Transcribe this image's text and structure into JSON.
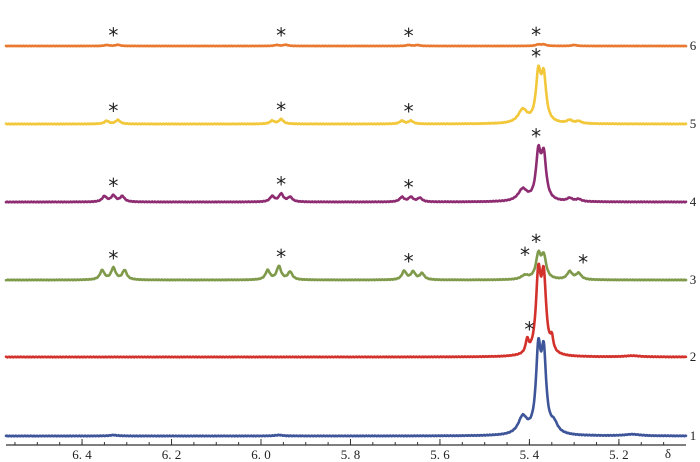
{
  "chart_data": {
    "type": "line",
    "title": "",
    "xlabel": "δ",
    "ylabel": "",
    "xlim": [
      6.57,
      5.05
    ],
    "x_reversed": true,
    "x_ticks": [
      "6.4",
      "6.2",
      "6.0",
      "5.8",
      "5.6",
      "5.4",
      "5.2"
    ],
    "grid": false,
    "legend": "none",
    "peak_marker": "*",
    "series": [
      {
        "name": "1",
        "color": "#3E5699",
        "peaks": [
          {
            "x": 5.415,
            "h": 0.22,
            "w": 0.012
          },
          {
            "x": 5.38,
            "h": 1.0,
            "w": 0.0065
          },
          {
            "x": 5.368,
            "h": 0.95,
            "w": 0.0065
          },
          {
            "x": 5.345,
            "h": 0.12,
            "w": 0.01
          },
          {
            "x": 6.33,
            "h": 0.012,
            "w": 0.01
          },
          {
            "x": 5.96,
            "h": 0.012,
            "w": 0.01
          },
          {
            "x": 5.17,
            "h": 0.02,
            "w": 0.02
          }
        ],
        "markers": [
          5.4
        ]
      },
      {
        "name": "2",
        "color": "#D3312B",
        "peaks": [
          {
            "x": 5.405,
            "h": 0.17,
            "w": 0.004
          },
          {
            "x": 5.38,
            "h": 1.0,
            "w": 0.0065
          },
          {
            "x": 5.368,
            "h": 0.95,
            "w": 0.0065
          },
          {
            "x": 5.35,
            "h": 0.17,
            "w": 0.004
          },
          {
            "x": 5.17,
            "h": 0.015,
            "w": 0.02
          }
        ],
        "markers": [
          5.41
        ]
      },
      {
        "name": "3",
        "color": "#7E9A4A",
        "peaks": [
          {
            "x": 6.355,
            "h": 0.12,
            "w": 0.006
          },
          {
            "x": 6.33,
            "h": 0.15,
            "w": 0.006
          },
          {
            "x": 6.305,
            "h": 0.12,
            "w": 0.006
          },
          {
            "x": 5.985,
            "h": 0.12,
            "w": 0.006
          },
          {
            "x": 5.96,
            "h": 0.17,
            "w": 0.006
          },
          {
            "x": 5.935,
            "h": 0.1,
            "w": 0.006
          },
          {
            "x": 5.68,
            "h": 0.11,
            "w": 0.006
          },
          {
            "x": 5.66,
            "h": 0.1,
            "w": 0.006
          },
          {
            "x": 5.64,
            "h": 0.08,
            "w": 0.006
          },
          {
            "x": 5.41,
            "h": 0.05,
            "w": 0.01
          },
          {
            "x": 5.38,
            "h": 0.3,
            "w": 0.0065
          },
          {
            "x": 5.368,
            "h": 0.28,
            "w": 0.0065
          },
          {
            "x": 5.31,
            "h": 0.1,
            "w": 0.007
          },
          {
            "x": 5.29,
            "h": 0.08,
            "w": 0.007
          }
        ],
        "markers": [
          6.33,
          5.955,
          5.67,
          5.385,
          5.28
        ]
      },
      {
        "name": "4",
        "color": "#8E2C72",
        "peaks": [
          {
            "x": 6.35,
            "h": 0.07,
            "w": 0.006
          },
          {
            "x": 6.33,
            "h": 0.08,
            "w": 0.006
          },
          {
            "x": 6.31,
            "h": 0.07,
            "w": 0.006
          },
          {
            "x": 5.975,
            "h": 0.07,
            "w": 0.006
          },
          {
            "x": 5.955,
            "h": 0.1,
            "w": 0.006
          },
          {
            "x": 5.935,
            "h": 0.06,
            "w": 0.006
          },
          {
            "x": 5.685,
            "h": 0.06,
            "w": 0.006
          },
          {
            "x": 5.665,
            "h": 0.06,
            "w": 0.006
          },
          {
            "x": 5.645,
            "h": 0.05,
            "w": 0.006
          },
          {
            "x": 5.415,
            "h": 0.15,
            "w": 0.012
          },
          {
            "x": 5.38,
            "h": 0.58,
            "w": 0.0065
          },
          {
            "x": 5.368,
            "h": 0.55,
            "w": 0.0065
          },
          {
            "x": 5.31,
            "h": 0.04,
            "w": 0.007
          },
          {
            "x": 5.29,
            "h": 0.03,
            "w": 0.007
          }
        ],
        "markers": [
          6.33,
          5.955,
          5.67,
          5.385
        ]
      },
      {
        "name": "5",
        "color": "#F2C83A",
        "peaks": [
          {
            "x": 6.345,
            "h": 0.04,
            "w": 0.006
          },
          {
            "x": 6.32,
            "h": 0.05,
            "w": 0.006
          },
          {
            "x": 5.975,
            "h": 0.04,
            "w": 0.006
          },
          {
            "x": 5.955,
            "h": 0.06,
            "w": 0.006
          },
          {
            "x": 5.685,
            "h": 0.04,
            "w": 0.006
          },
          {
            "x": 5.665,
            "h": 0.04,
            "w": 0.006
          },
          {
            "x": 5.415,
            "h": 0.17,
            "w": 0.012
          },
          {
            "x": 5.38,
            "h": 0.6,
            "w": 0.0065
          },
          {
            "x": 5.368,
            "h": 0.56,
            "w": 0.0065
          },
          {
            "x": 5.31,
            "h": 0.04,
            "w": 0.007
          },
          {
            "x": 5.29,
            "h": 0.03,
            "w": 0.007
          }
        ],
        "markers": [
          6.33,
          5.955,
          5.67,
          5.385
        ]
      },
      {
        "name": "6",
        "color": "#E8792F",
        "peaks": [
          {
            "x": 6.345,
            "h": 0.02,
            "w": 0.006
          },
          {
            "x": 6.32,
            "h": 0.025,
            "w": 0.006
          },
          {
            "x": 5.965,
            "h": 0.02,
            "w": 0.006
          },
          {
            "x": 5.945,
            "h": 0.025,
            "w": 0.006
          },
          {
            "x": 5.67,
            "h": 0.02,
            "w": 0.006
          },
          {
            "x": 5.65,
            "h": 0.02,
            "w": 0.006
          },
          {
            "x": 5.38,
            "h": 0.03,
            "w": 0.0065
          },
          {
            "x": 5.368,
            "h": 0.03,
            "w": 0.0065
          },
          {
            "x": 5.3,
            "h": 0.02,
            "w": 0.007
          }
        ],
        "markers": [
          6.33,
          5.955,
          5.67,
          5.385
        ]
      }
    ]
  }
}
